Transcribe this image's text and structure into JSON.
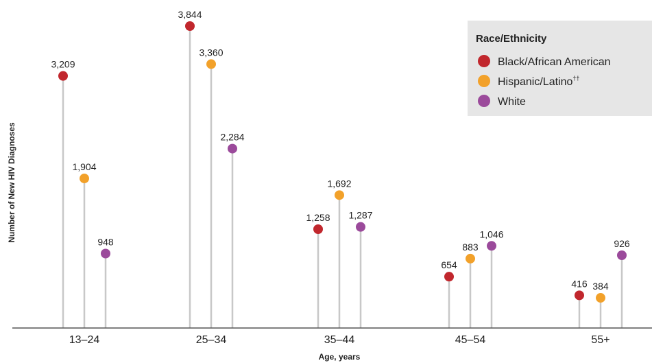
{
  "chart_data": {
    "type": "lollipop",
    "categories": [
      "13–24",
      "25–34",
      "35–44",
      "45–54",
      "55+"
    ],
    "series": [
      {
        "name": "Black/African American",
        "color": "#c1272d",
        "values": [
          3209,
          3844,
          1258,
          654,
          416
        ]
      },
      {
        "name": "Hispanic/Latino",
        "name_sup": "††",
        "color": "#f2a12a",
        "values": [
          1904,
          3360,
          1692,
          883,
          384
        ]
      },
      {
        "name": "White",
        "color": "#9b4a9b",
        "values": [
          948,
          2284,
          1287,
          1046,
          926
        ]
      }
    ],
    "data_labels": [
      [
        "3,209",
        "3,844",
        "1,258",
        "654",
        "416"
      ],
      [
        "1,904",
        "3,360",
        "1,692",
        "883",
        "384"
      ],
      [
        "948",
        "2,284",
        "1,287",
        "1,046",
        "926"
      ]
    ],
    "xlabel": "Age, years",
    "ylabel": "Number of New HIV Diagnoses",
    "legend_title": "Race/Ethnicity",
    "legend_position": "top-right",
    "grid": false,
    "ylim": [
      0,
      4050
    ],
    "stem_color": "#c8c8c8",
    "axis_color": "#555555",
    "legend_bg": "#e6e6e6"
  }
}
